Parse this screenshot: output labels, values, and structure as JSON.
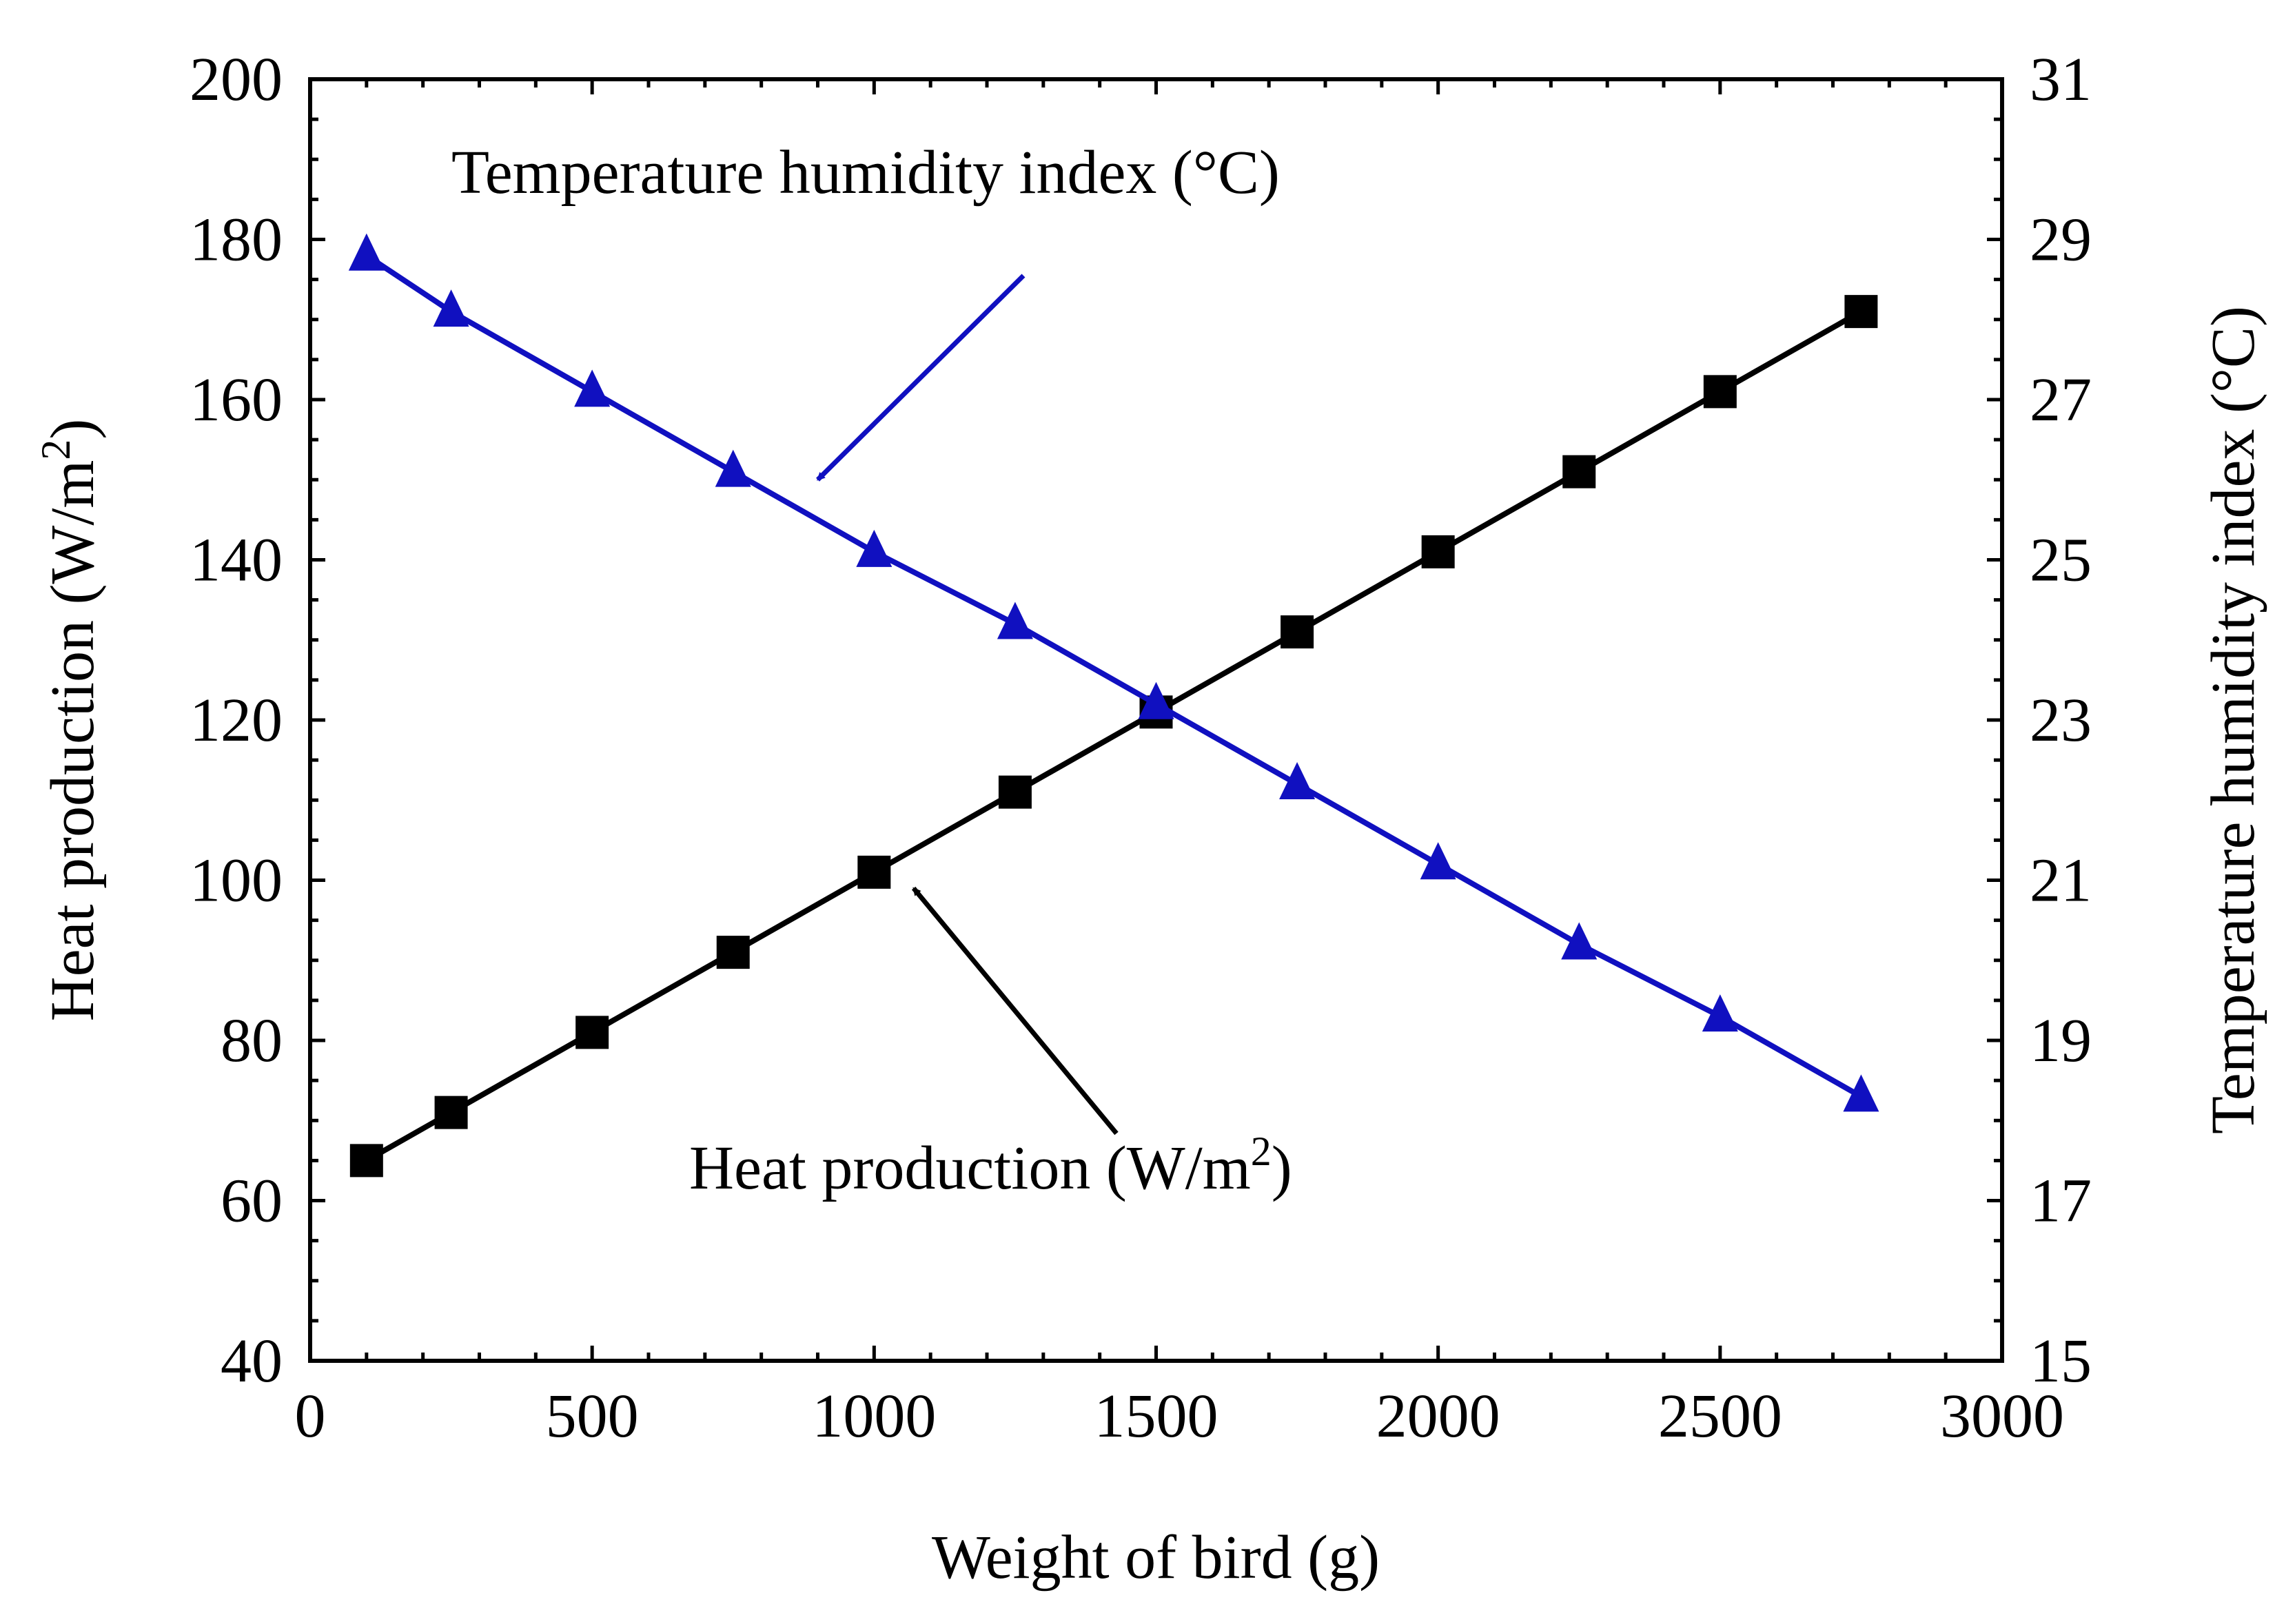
{
  "chart_data": {
    "type": "line",
    "title": "",
    "xlabel": "Weight of bird (g)",
    "ylabel": "Heat production (W/m",
    "ylabel_sup": "2",
    "ylabel_end": ")",
    "y2label": "Temperature humidity index (°C)",
    "xlim": [
      0,
      3000
    ],
    "ylim": [
      40,
      200
    ],
    "y2lim": [
      15,
      31
    ],
    "x_ticks": [
      "0",
      "500",
      "1000",
      "1500",
      "2000",
      "2500",
      "3000"
    ],
    "y_ticks": [
      "40",
      "60",
      "80",
      "100",
      "120",
      "140",
      "160",
      "180",
      "200"
    ],
    "y2_ticks": [
      "15",
      "17",
      "19",
      "21",
      "23",
      "25",
      "27",
      "29",
      "31"
    ],
    "series": [
      {
        "name": "Heat production (W/m2)",
        "axis": "left",
        "marker": "square",
        "color": "#000000",
        "x": [
          100,
          250,
          500,
          750,
          1000,
          1250,
          1500,
          1750,
          2000,
          2250,
          2500,
          2750
        ],
        "values": [
          65,
          71,
          81,
          91,
          101,
          111,
          121,
          131,
          141,
          151,
          161,
          171
        ]
      },
      {
        "name": "Temperature humidity index (°C)",
        "axis": "right",
        "marker": "triangle",
        "color": "#1010c0",
        "x": [
          100,
          250,
          500,
          750,
          1000,
          1250,
          1500,
          1750,
          2000,
          2250,
          2500,
          2750
        ],
        "values": [
          28.8,
          28.1,
          27.1,
          26.1,
          25.1,
          24.2,
          23.2,
          22.2,
          21.2,
          20.2,
          19.3,
          18.3
        ]
      }
    ],
    "annotations": [
      {
        "id": "thi",
        "text": "Temperature humidity index (°C)",
        "color": "#1010c0",
        "arrow_to": {
          "x": 900,
          "y2": 26
        }
      },
      {
        "id": "hp",
        "text": "Heat production (W/m",
        "sup": "2",
        "end": ")",
        "color": "#000000",
        "arrow_to": {
          "x": 1070,
          "y": 99
        }
      }
    ]
  }
}
